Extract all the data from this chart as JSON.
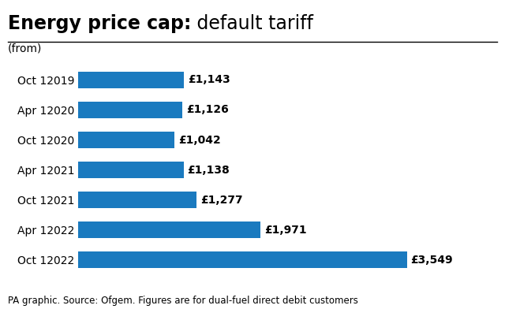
{
  "title_bold": "Energy price cap:",
  "title_normal": " default tariff",
  "subtitle": "(from)",
  "categories": [
    "Oct 12019",
    "Apr 12020",
    "Oct 12020",
    "Apr 12021",
    "Oct 12021",
    "Apr 12022",
    "Oct 12022"
  ],
  "values": [
    1143,
    1126,
    1042,
    1138,
    1277,
    1971,
    3549
  ],
  "labels": [
    "£1,143",
    "£1,126",
    "£1,042",
    "£1,138",
    "£1,277",
    "£1,971",
    "£3,549"
  ],
  "bar_color": "#1a7abf",
  "background_color": "#ffffff",
  "footnote": "PA graphic. Source: Ofgem. Figures are for dual-fuel direct debit customers",
  "xlim": [
    0,
    3900
  ],
  "title_fontsize": 17,
  "subtitle_fontsize": 10,
  "label_fontsize": 10,
  "tick_fontsize": 10,
  "footnote_fontsize": 8.5
}
